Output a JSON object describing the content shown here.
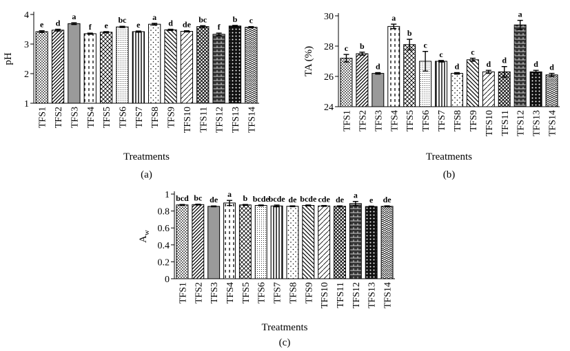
{
  "chart_data": [
    {
      "type": "bar",
      "panel_label": "(a)",
      "xlabel": "Treatments",
      "ylabel": "pH",
      "ylim": [
        1,
        4
      ],
      "yticks": [
        1,
        2,
        3,
        4
      ],
      "grid": false,
      "categories": [
        "TFS1",
        "TFS2",
        "TFS3",
        "TFS4",
        "TFS5",
        "TFS6",
        "TFS7",
        "TFS8",
        "TFS9",
        "TFS10",
        "TFS11",
        "TFS12",
        "TFS13",
        "TFS14"
      ],
      "values": [
        3.42,
        3.47,
        3.69,
        3.35,
        3.4,
        3.58,
        3.42,
        3.67,
        3.48,
        3.43,
        3.59,
        3.33,
        3.61,
        3.57
      ],
      "errors": [
        0.03,
        0.03,
        0.03,
        0.02,
        0.02,
        0.02,
        0.02,
        0.03,
        0.02,
        0.02,
        0.03,
        0.04,
        0.02,
        0.02
      ],
      "letters": [
        "e",
        "d",
        "a",
        "f",
        "e",
        "bc",
        "e",
        "a",
        "d",
        "de",
        "bc",
        "f",
        "b",
        "c"
      ]
    },
    {
      "type": "bar",
      "panel_label": "(b)",
      "xlabel": "Treatments",
      "ylabel": "TA (%)",
      "ylim": [
        24,
        30
      ],
      "yticks": [
        24,
        26,
        28,
        30
      ],
      "grid": false,
      "categories": [
        "TFS1",
        "TFS2",
        "TFS3",
        "TFS4",
        "TFS5",
        "TFS6",
        "TFS7",
        "TFS8",
        "TFS9",
        "TFS10",
        "TFS11",
        "TFS12",
        "TFS13",
        "TFS14"
      ],
      "values": [
        27.2,
        27.5,
        26.2,
        29.3,
        28.1,
        27.0,
        27.0,
        26.2,
        27.1,
        26.3,
        26.3,
        29.4,
        26.3,
        26.1
      ],
      "errors": [
        0.25,
        0.1,
        0.05,
        0.15,
        0.35,
        0.65,
        0.05,
        0.05,
        0.1,
        0.1,
        0.35,
        0.3,
        0.1,
        0.1
      ],
      "letters": [
        "c",
        "b",
        "d",
        "a",
        "b",
        "c",
        "c",
        "d",
        "c",
        "d",
        "d",
        "a",
        "d",
        "d"
      ]
    },
    {
      "type": "bar",
      "panel_label": "(c)",
      "xlabel": "Treatments",
      "ylabel": "A",
      "ylabel_sub": "w",
      "ylim": [
        0,
        1
      ],
      "yticks": [
        0,
        0.2,
        0.4,
        0.6,
        0.8,
        1
      ],
      "grid": false,
      "categories": [
        "TFS1",
        "TFS2",
        "TFS3",
        "TFS4",
        "TFS5",
        "TFS6",
        "TFS7",
        "TFS8",
        "TFS9",
        "TFS10",
        "TFS11",
        "TFS12",
        "TFS13",
        "TFS14"
      ],
      "values": [
        0.872,
        0.876,
        0.855,
        0.895,
        0.872,
        0.866,
        0.86,
        0.856,
        0.866,
        0.86,
        0.856,
        0.888,
        0.853,
        0.856
      ],
      "errors": [
        0.005,
        0.005,
        0.005,
        0.03,
        0.005,
        0.005,
        0.01,
        0.005,
        0.005,
        0.005,
        0.005,
        0.025,
        0.005,
        0.005
      ],
      "letters": [
        "bcd",
        "bc",
        "de",
        "a",
        "b",
        "bcde",
        "bcde",
        "de",
        "bcde",
        "cde",
        "de",
        "a",
        "e",
        "de"
      ]
    }
  ]
}
